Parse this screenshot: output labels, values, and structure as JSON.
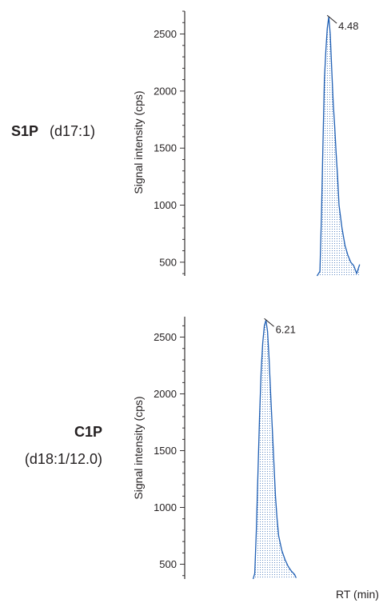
{
  "chart_data": [
    {
      "type": "line",
      "panel_name": "S1P",
      "panel_detail": "(d17:1)",
      "ylabel": "Signal intensity (cps)",
      "xlabel": "",
      "yticks": [
        500,
        1000,
        1500,
        2000,
        2500
      ],
      "ylim": [
        380,
        2700
      ],
      "xlim": [
        3.5,
        4.8
      ],
      "peak_label": "4.48",
      "peak_rt": 4.48,
      "series": [
        {
          "color": "#1f5fb4",
          "fill": "dotted",
          "x": [
            4.4,
            4.42,
            4.43,
            4.44,
            4.45,
            4.46,
            4.47,
            4.48,
            4.49,
            4.5,
            4.51,
            4.52,
            4.53,
            4.54,
            4.55,
            4.57,
            4.59,
            4.61,
            4.63,
            4.65,
            4.67,
            4.68,
            4.69
          ],
          "y": [
            380,
            420,
            900,
            1500,
            2100,
            2350,
            2550,
            2650,
            2500,
            2200,
            1900,
            1700,
            1450,
            1250,
            1000,
            800,
            650,
            560,
            500,
            470,
            400,
            440,
            480
          ]
        }
      ]
    },
    {
      "type": "line",
      "panel_name": "C1P",
      "panel_detail": "(d18:1/12.0)",
      "ylabel": "Signal intensity (cps)",
      "xlabel": "RT (min)",
      "yticks": [
        500,
        1000,
        1500,
        2000,
        2500
      ],
      "ylim": [
        370,
        2680
      ],
      "xlim": [
        5.7,
        6.9
      ],
      "peak_label": "6.21",
      "peak_rt": 6.21,
      "series": [
        {
          "color": "#1f5fb4",
          "fill": "dotted",
          "x": [
            6.13,
            6.14,
            6.15,
            6.16,
            6.17,
            6.18,
            6.19,
            6.2,
            6.21,
            6.22,
            6.23,
            6.24,
            6.25,
            6.26,
            6.27,
            6.28,
            6.29,
            6.31,
            6.33,
            6.35,
            6.37,
            6.39,
            6.4
          ],
          "y": [
            370,
            420,
            800,
            1300,
            1800,
            2200,
            2450,
            2600,
            2650,
            2550,
            2300,
            2000,
            1700,
            1400,
            1100,
            900,
            750,
            620,
            540,
            480,
            440,
            410,
            380
          ]
        }
      ]
    }
  ]
}
